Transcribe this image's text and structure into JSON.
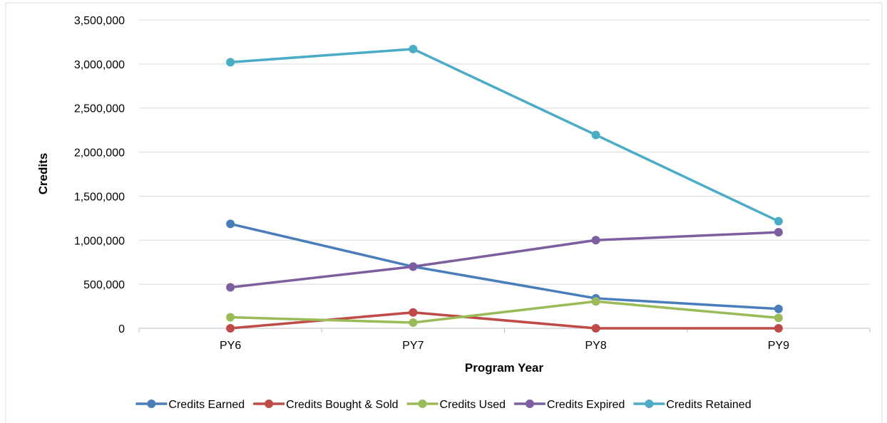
{
  "chart_data": {
    "type": "line",
    "title": "",
    "xlabel": "Program Year",
    "ylabel": "Credits",
    "categories": [
      "PY6",
      "PY7",
      "PY8",
      "PY9"
    ],
    "ylim": [
      0,
      3500000
    ],
    "yticks": [
      0,
      500000,
      1000000,
      1500000,
      2000000,
      2500000,
      3000000,
      3500000
    ],
    "ytick_labels": [
      "0",
      "500,000",
      "1,000,000",
      "1,500,000",
      "2,000,000",
      "2,500,000",
      "3,000,000",
      "3,500,000"
    ],
    "grid": "horizontal",
    "legend_position": "bottom",
    "series": [
      {
        "name": "Credits Earned",
        "color": "#4a7ebb",
        "values": [
          1185000,
          700000,
          340000,
          220000
        ]
      },
      {
        "name": "Credits Bought & Sold",
        "color": "#be4b48",
        "values": [
          0,
          180000,
          0,
          0
        ]
      },
      {
        "name": "Credits Used",
        "color": "#9bbb59",
        "values": [
          125000,
          65000,
          305000,
          118000
        ]
      },
      {
        "name": "Credits Expired",
        "color": "#7d5fa0",
        "values": [
          465000,
          700000,
          1000000,
          1090000
        ]
      },
      {
        "name": "Credits Retained",
        "color": "#4bacc6",
        "values": [
          3020000,
          3170000,
          2195000,
          1215000
        ]
      }
    ]
  }
}
